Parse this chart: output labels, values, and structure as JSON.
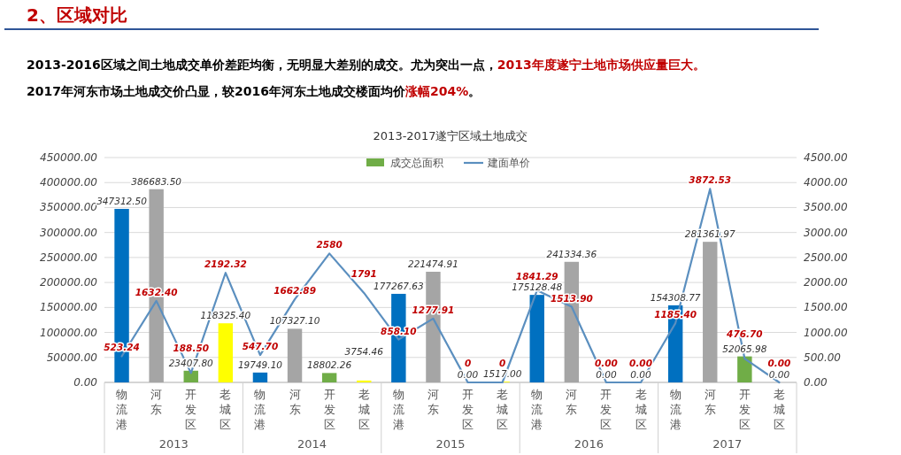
{
  "chart_data": {
    "type": "bar",
    "title": "2013-2017遂宁区域土地成交",
    "annotations": [
      "2、区域对比",
      "2013-2016区域之间土地成交单价差距均衡，无明显大差别的成交。尤为突出一点，",
      "2013年度遂宁土地市场供应量巨大。",
      "2017年河东市场土地成交价凸显，较2016年河东土地成交楼面均价",
      "涨幅204%",
      "。",
      "2013",
      "2014",
      "2015",
      "2016",
      "2017"
    ],
    "categories": [
      "物流港",
      "河东",
      "开发区",
      "老城区",
      "物流港",
      "河东",
      "开发区",
      "老城区",
      "物流港",
      "河东",
      "开发区",
      "老城区",
      "物流港",
      "河东",
      "开发区",
      "老城区",
      "物流港",
      "河东",
      "开发区",
      "老城区"
    ],
    "series": [
      {
        "name": "成交总面积",
        "color": "#70ad47",
        "colors": [
          "#0070c0",
          "#a5a5a5",
          "#70ad47",
          "#ffff00",
          "#0070c0",
          "#a5a5a5",
          "#70ad47",
          "#ffff00",
          "#0070c0",
          "#a5a5a5",
          "#70ad47",
          "#ffff00",
          "#0070c0",
          "#a5a5a5",
          "#70ad47",
          "#ffff00",
          "#0070c0",
          "#a5a5a5",
          "#70ad47",
          "#ffff00"
        ],
        "values": [
          347312.5,
          386683.5,
          23407.8,
          118325.4,
          19749.1,
          107327.1,
          18802.26,
          3754.46,
          177267.63,
          221474.91,
          0,
          1517,
          175128.48,
          241334.36,
          0,
          0,
          154308.77,
          281361.97,
          52065.98,
          0
        ],
        "value_labels": [
          "347312.50",
          "386683.50",
          "23407.80",
          "118325.40",
          "19749.10",
          "107327.10",
          "18802.26",
          "3754.46",
          "177267.63",
          "221474.91",
          "0.00",
          "1517.00",
          "175128.48",
          "241334.36",
          "0.00",
          "0.00",
          "154308.77",
          "281361.97",
          "52065.98",
          "0.00"
        ]
      },
      {
        "name": "建面单价",
        "type": "line",
        "axis": "y2",
        "color": "#5b8fbf",
        "values": [
          523.24,
          1632.4,
          188.5,
          2192.32,
          547.7,
          1662.89,
          2580,
          1791,
          858.1,
          1277.91,
          0,
          0,
          1841.29,
          1513.9,
          0,
          0,
          1185.4,
          3872.53,
          476.7,
          0
        ],
        "value_labels": [
          "523.24",
          "1632.40",
          "188.50",
          "2192.32",
          "547.70",
          "1662.89",
          "2580",
          "1791",
          "858.10",
          "1277.91",
          "0",
          "0",
          "1841.29",
          "1513.90",
          "0.00",
          "0.00",
          "1185.40",
          "3872.53",
          "476.70",
          "0.00"
        ]
      }
    ],
    "ylim": [
      0,
      450000
    ],
    "yticks": [
      {
        "value": 0,
        "label": "0.00"
      },
      {
        "value": 50000,
        "label": "50000.00"
      },
      {
        "value": 100000,
        "label": "100000.00"
      },
      {
        "value": 150000,
        "label": "150000.00"
      },
      {
        "value": 200000,
        "label": "200000.00"
      },
      {
        "value": 250000,
        "label": "250000.00"
      },
      {
        "value": 300000,
        "label": "300000.00"
      },
      {
        "value": 350000,
        "label": "350000.00"
      },
      {
        "value": 400000,
        "label": "400000.00"
      },
      {
        "value": 450000,
        "label": "450000.00"
      }
    ],
    "y2lim": [
      0,
      4500
    ],
    "y2ticks": [
      {
        "value": 0,
        "label": "0.00"
      },
      {
        "value": 500,
        "label": "500.00"
      },
      {
        "value": 1000,
        "label": "1000.00"
      },
      {
        "value": 1500,
        "label": "1500.00"
      },
      {
        "value": 2000,
        "label": "2000.00"
      },
      {
        "value": 2500,
        "label": "2500.00"
      },
      {
        "value": 3000,
        "label": "3000.00"
      },
      {
        "value": 3500,
        "label": "3500.00"
      },
      {
        "value": 4000,
        "label": "4000.00"
      },
      {
        "value": 4500,
        "label": "4500.00"
      }
    ],
    "grid": "y",
    "legend": "top",
    "marker": "none",
    "line_style": "solid"
  }
}
